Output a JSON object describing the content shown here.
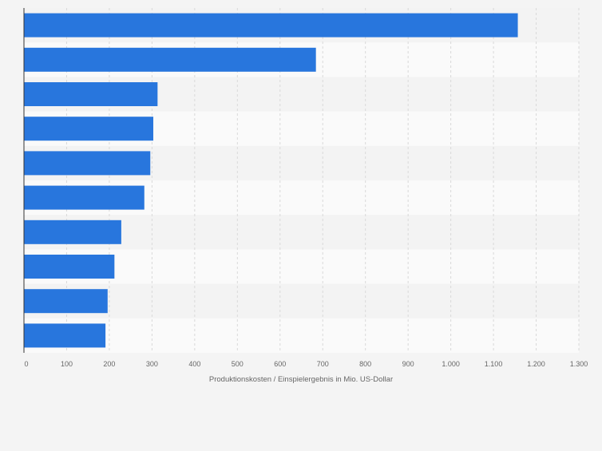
{
  "chart_data": {
    "type": "bar",
    "orientation": "horizontal",
    "title": "",
    "xlabel": "Produktionskosten / Einspielergebnis in Mio. US-Dollar",
    "ylabel": "",
    "xlim": [
      0,
      1300
    ],
    "xticks": [
      0,
      100,
      200,
      300,
      400,
      500,
      600,
      700,
      800,
      900,
      1000,
      1100,
      1200,
      1300
    ],
    "xtick_labels": [
      "0",
      "100",
      "200",
      "300",
      "400",
      "500",
      "600",
      "700",
      "800",
      "900",
      "1.000",
      "1.100",
      "1.200",
      "1.300"
    ],
    "grid": true,
    "bar_color": "#2876dd",
    "values": [
      1157,
      684,
      313,
      303,
      296,
      282,
      228,
      212,
      196,
      191
    ]
  }
}
